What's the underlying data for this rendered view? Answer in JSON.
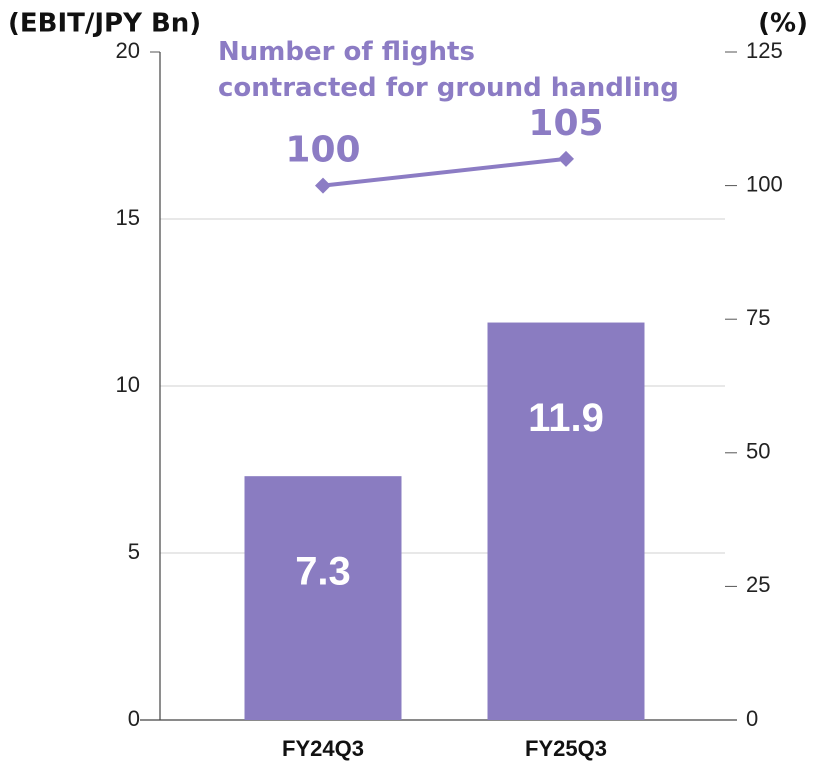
{
  "chart_data": {
    "type": "bar",
    "categories": [
      "FY24Q3",
      "FY25Q3"
    ],
    "ylabel": "(EBIT/JPY Bn)",
    "y2label": "(%)",
    "series": [
      {
        "type": "bar",
        "color": "#8a7cc1",
        "values": [
          7.3,
          11.9
        ]
      },
      {
        "type": "line",
        "name": "Number of flights\ncontracted for ground handling",
        "color": "#8c7cc4",
        "axis": "y2",
        "values": [
          100,
          105
        ]
      }
    ],
    "ylim": [
      0,
      20
    ],
    "yticks": [
      0,
      5,
      10,
      15,
      20
    ],
    "y2lim": [
      0,
      125
    ],
    "y2ticks": [
      0,
      25,
      50,
      75,
      100,
      125
    ],
    "grid": true
  }
}
